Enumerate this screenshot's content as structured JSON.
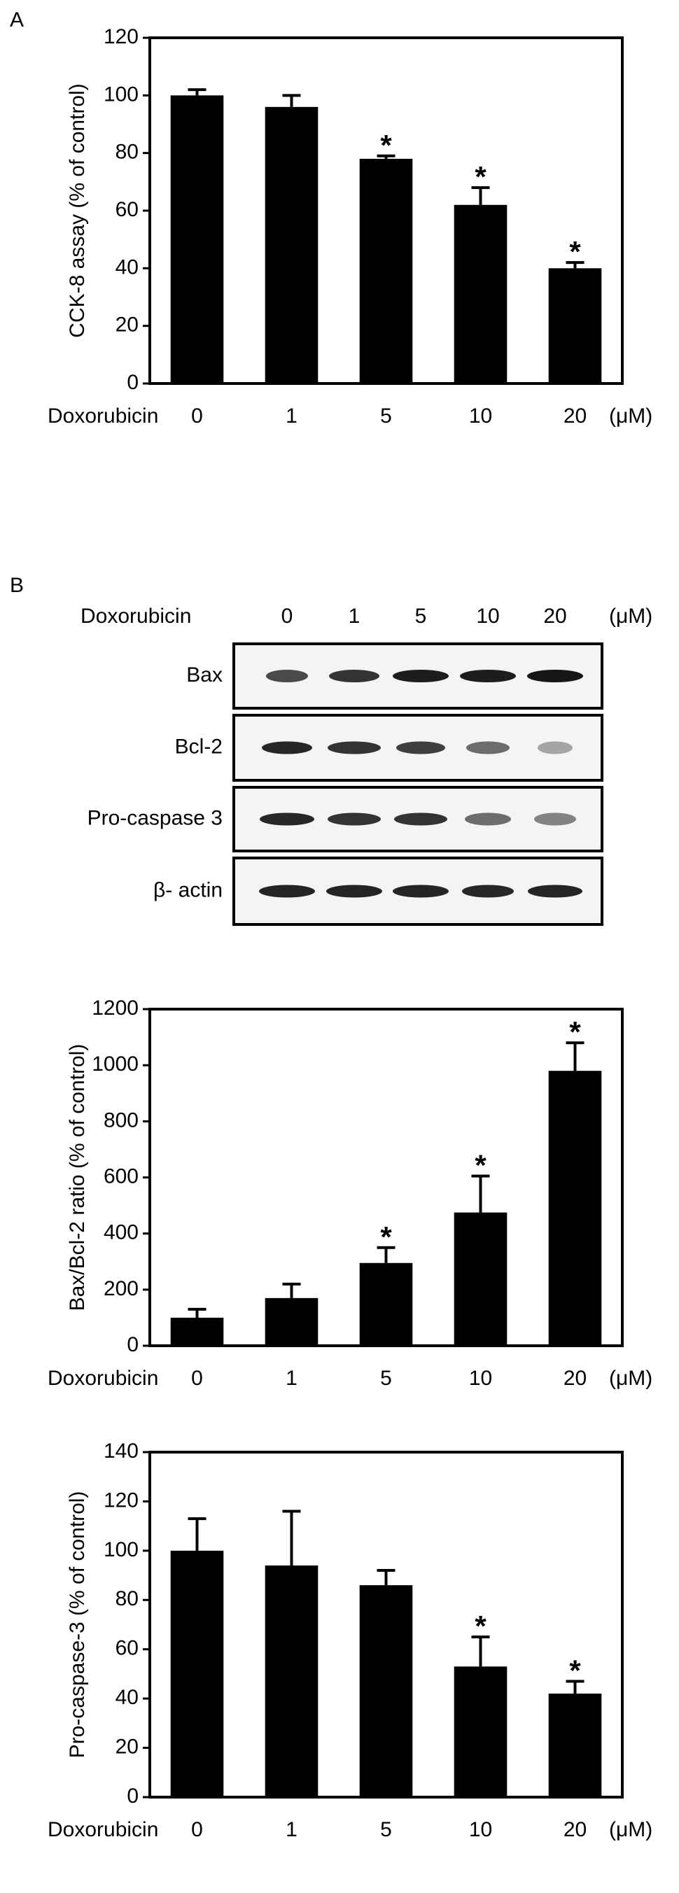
{
  "panel_labels": [
    "A",
    "B"
  ],
  "blot": {
    "treatment": "Doxorubicin",
    "lanes": [
      "0",
      "1",
      "5",
      "10",
      "20"
    ],
    "unit": "(μM)",
    "bands": [
      "Bax",
      "Bcl-2",
      "Pro-caspase 3",
      "β- actin"
    ]
  },
  "chart_data": [
    {
      "type": "bar",
      "ylabel": "CCK-8 assay (% of control)",
      "xlabel": "Doxorubicin",
      "unit": "(μM)",
      "categories": [
        "0",
        "1",
        "5",
        "10",
        "20"
      ],
      "values": [
        100,
        96,
        78,
        62,
        40
      ],
      "errors": [
        2,
        4,
        1,
        6,
        2
      ],
      "significant": [
        false,
        false,
        true,
        true,
        true
      ],
      "marker": "*",
      "color": "#000000",
      "ylim": [
        0,
        120
      ],
      "yticks": [
        0,
        20,
        40,
        60,
        80,
        100,
        120
      ]
    },
    {
      "type": "bar",
      "ylabel": "Bax/Bcl-2 ratio (% of control)",
      "xlabel": "Doxorubicin",
      "unit": "(μM)",
      "categories": [
        "0",
        "1",
        "5",
        "10",
        "20"
      ],
      "values": [
        100,
        170,
        295,
        475,
        980
      ],
      "errors": [
        30,
        50,
        55,
        130,
        100
      ],
      "significant": [
        false,
        false,
        true,
        true,
        true
      ],
      "marker": "*",
      "color": "#000000",
      "ylim": [
        0,
        1200
      ],
      "yticks": [
        0,
        200,
        400,
        600,
        800,
        1000,
        1200
      ]
    },
    {
      "type": "bar",
      "ylabel": "Pro-caspase-3 (% of control)",
      "xlabel": "Doxorubicin",
      "unit": "(μM)",
      "categories": [
        "0",
        "1",
        "5",
        "10",
        "20"
      ],
      "values": [
        100,
        94,
        86,
        53,
        42
      ],
      "errors": [
        13,
        22,
        6,
        12,
        5
      ],
      "significant": [
        false,
        false,
        false,
        true,
        true
      ],
      "marker": "*",
      "color": "#000000",
      "ylim": [
        0,
        140
      ],
      "yticks": [
        0,
        20,
        40,
        60,
        80,
        100,
        120,
        140
      ]
    }
  ]
}
